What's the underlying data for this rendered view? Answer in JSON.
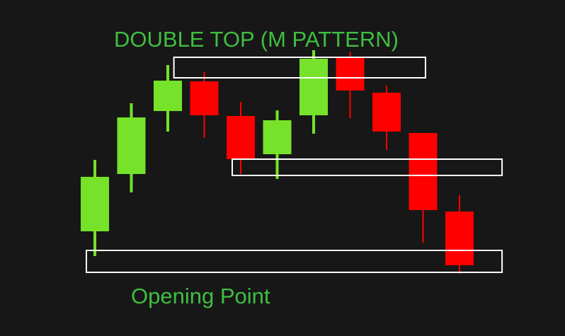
{
  "chart_data": {
    "type": "candlestick",
    "title": "DOUBLE TOP (M PATTERN)",
    "xlabel": "",
    "ylabel": "",
    "grid": false,
    "legend": "none",
    "colors": {
      "background": "#171717",
      "bullish": "#76e22a",
      "bearish": "#ff0000",
      "text": "#3fbf3f",
      "zone_outline": "#ffffff"
    },
    "candles": [
      {
        "direction": "up",
        "open": 148,
        "close": 225,
        "high": 249,
        "low": 113
      },
      {
        "direction": "up",
        "open": 229,
        "close": 309,
        "high": 329,
        "low": 203
      },
      {
        "direction": "up",
        "open": 318,
        "close": 361,
        "high": 383,
        "low": 289
      },
      {
        "direction": "down",
        "open": 360,
        "close": 312,
        "high": 373,
        "low": 280
      },
      {
        "direction": "down",
        "open": 311,
        "close": 250,
        "high": 331,
        "low": 229
      },
      {
        "direction": "up",
        "open": 257,
        "close": 305,
        "high": 319,
        "low": 222
      },
      {
        "direction": "up",
        "open": 312,
        "close": 392,
        "high": 404,
        "low": 286
      },
      {
        "direction": "down",
        "open": 393,
        "close": 347,
        "high": 402,
        "low": 308
      },
      {
        "direction": "down",
        "open": 344,
        "close": 289,
        "high": 354,
        "low": 263
      },
      {
        "direction": "down",
        "open": 287,
        "close": 178,
        "high": 287,
        "low": 132
      },
      {
        "direction": "down",
        "open": 176,
        "close": 100,
        "high": 199,
        "low": 88
      }
    ],
    "zones": [
      {
        "name": "top-resistance-zone",
        "from_candle": 2.4,
        "to_candle": 9.3,
        "low": 365,
        "high": 394
      },
      {
        "name": "neckline-zone",
        "from_candle": 4.0,
        "to_candle": 11.4,
        "low": 227,
        "high": 250
      },
      {
        "name": "opening-point-zone",
        "from_candle": 0.0,
        "to_candle": 11.4,
        "low": 90,
        "high": 121
      }
    ],
    "annotations": [
      {
        "text": "Opening Point"
      }
    ]
  }
}
